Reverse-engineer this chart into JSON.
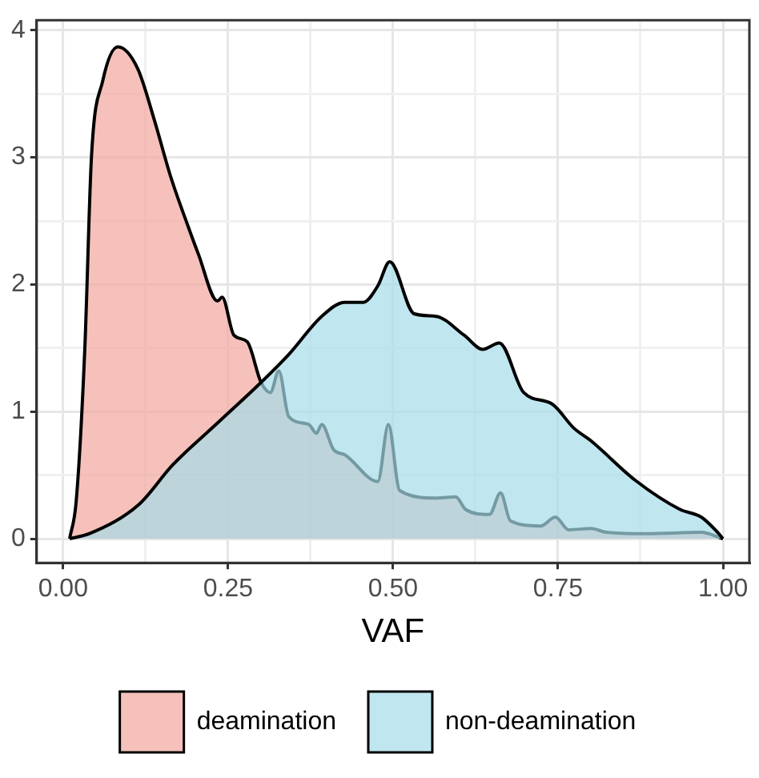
{
  "chart_data": {
    "type": "area",
    "xlabel": "VAF",
    "xlim": [
      -0.04,
      1.04
    ],
    "ylim": [
      -0.19,
      4.08
    ],
    "xticks": [
      {
        "value": 0,
        "label": "0.00"
      },
      {
        "value": 0.125,
        "label": null
      },
      {
        "value": 0.25,
        "label": "0.25"
      },
      {
        "value": 0.375,
        "label": null
      },
      {
        "value": 0.5,
        "label": "0.50"
      },
      {
        "value": 0.625,
        "label": null
      },
      {
        "value": 0.75,
        "label": "0.75"
      },
      {
        "value": 0.875,
        "label": null
      },
      {
        "value": 1,
        "label": "1.00"
      }
    ],
    "yticks": [
      0,
      {
        "value": 0.5,
        "label": null
      },
      1,
      {
        "value": 1.5,
        "label": null
      },
      2,
      {
        "value": 2.5,
        "label": null
      },
      3,
      {
        "value": 3.5,
        "label": null
      },
      4
    ],
    "grid": true,
    "legend": "bottom",
    "series": [
      {
        "name": "deamination",
        "color": "#f1a69c",
        "x": [
          0.01,
          0.02,
          0.033,
          0.043,
          0.06,
          0.083,
          0.113,
          0.138,
          0.163,
          0.19,
          0.205,
          0.234,
          0.241,
          0.259,
          0.279,
          0.3,
          0.314,
          0.327,
          0.342,
          0.372,
          0.384,
          0.392,
          0.41,
          0.427,
          0.477,
          0.493,
          0.51,
          0.565,
          0.595,
          0.61,
          0.646,
          0.663,
          0.678,
          0.724,
          0.746,
          0.766,
          0.8,
          0.824,
          0.884,
          0.967,
          1.0
        ],
        "values": [
          0,
          0.3,
          1.5,
          3,
          3.6,
          3.87,
          3.7,
          3.3,
          2.85,
          2.45,
          2.24,
          1.87,
          1.9,
          1.6,
          1.55,
          1.23,
          1.15,
          1.32,
          0.96,
          0.9,
          0.83,
          0.9,
          0.7,
          0.66,
          0.45,
          0.9,
          0.38,
          0.32,
          0.33,
          0.23,
          0.19,
          0.36,
          0.14,
          0.1,
          0.17,
          0.07,
          0.08,
          0.05,
          0.04,
          0.05,
          0
        ]
      },
      {
        "name": "non-deamination",
        "color": "#a5dce9",
        "x": [
          0.01,
          0.04,
          0.115,
          0.166,
          0.234,
          0.3,
          0.342,
          0.392,
          0.427,
          0.455,
          0.477,
          0.495,
          0.532,
          0.565,
          0.608,
          0.636,
          0.661,
          0.698,
          0.741,
          0.774,
          0.8,
          0.867,
          0.935,
          0.967,
          0.99,
          1.0
        ],
        "values": [
          0,
          0.04,
          0.27,
          0.58,
          0.91,
          1.23,
          1.45,
          1.75,
          1.86,
          1.86,
          1.99,
          2.18,
          1.77,
          1.75,
          1.6,
          1.49,
          1.54,
          1.15,
          1.06,
          0.87,
          0.77,
          0.46,
          0.23,
          0.17,
          0.06,
          0
        ]
      }
    ]
  }
}
